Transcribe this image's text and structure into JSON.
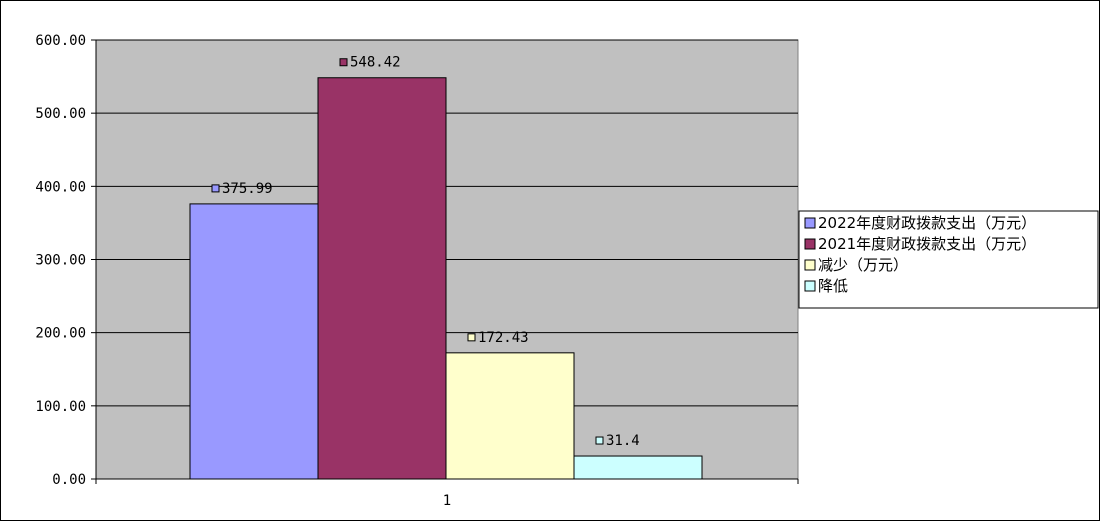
{
  "chart_data": {
    "type": "bar",
    "categories": [
      "1"
    ],
    "series": [
      {
        "name": "2022年度财政拨款支出（万元）",
        "values": [
          375.99
        ],
        "label": "375.99",
        "color": "#9999FF"
      },
      {
        "name": "2021年度财政拨款支出（万元）",
        "values": [
          548.42
        ],
        "label": "548.42",
        "color": "#993366"
      },
      {
        "name": "减少（万元）",
        "values": [
          172.43
        ],
        "label": "172.43",
        "color": "#FFFFCC"
      },
      {
        "name": "降低",
        "values": [
          31.4
        ],
        "label": "31.4",
        "color": "#CCFFFF"
      }
    ],
    "y_ticks": [
      "0.00",
      "100.00",
      "200.00",
      "300.00",
      "400.00",
      "500.00",
      "600.00"
    ],
    "ylim": [
      0,
      600
    ],
    "title": "",
    "xlabel": "",
    "ylabel": "",
    "grid": true,
    "plot_background": "#C0C0C0",
    "legend_position": "right"
  }
}
